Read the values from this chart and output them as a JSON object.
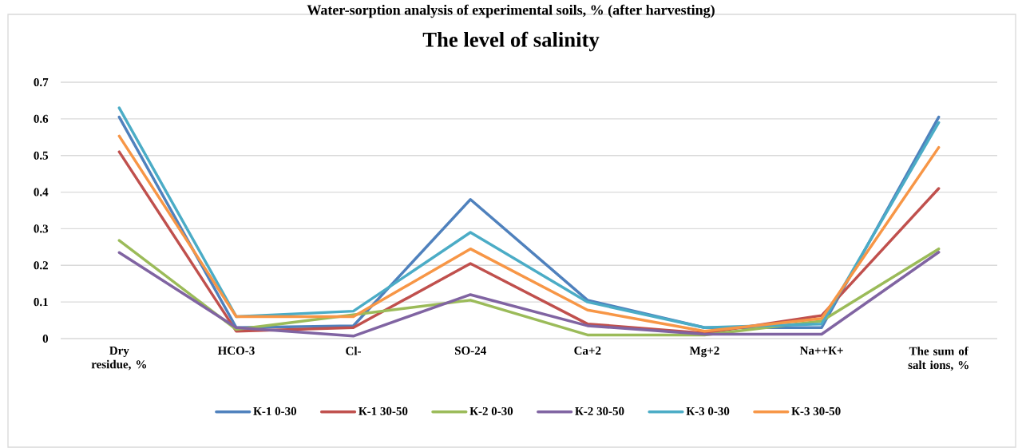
{
  "chart_data": {
    "type": "line",
    "title": "The level of salinity",
    "annotations": [
      "Water-sorption analysis of experimental soils, % (after harvesting)"
    ],
    "categories": [
      "Dry residue, %",
      "HCO-3",
      "Cl-",
      "SO-24",
      "Ca+2",
      "Mg+2",
      "Na++К+",
      "The sum of salt ions, %"
    ],
    "series": [
      {
        "name": "К-1 0-30",
        "color": "#4f81bd",
        "values": [
          0.605,
          0.03,
          0.035,
          0.38,
          0.105,
          0.03,
          0.03,
          0.605
        ]
      },
      {
        "name": "К-1 30-50",
        "color": "#c0504d",
        "values": [
          0.51,
          0.02,
          0.03,
          0.205,
          0.04,
          0.015,
          0.063,
          0.41
        ]
      },
      {
        "name": "К-2 0-30",
        "color": "#9bbb59",
        "values": [
          0.268,
          0.025,
          0.065,
          0.105,
          0.01,
          0.01,
          0.048,
          0.245
        ]
      },
      {
        "name": "К-2 30-50",
        "color": "#8064a2",
        "values": [
          0.235,
          0.03,
          0.007,
          0.12,
          0.035,
          0.012,
          0.012,
          0.236
        ]
      },
      {
        "name": "К-3 0-30",
        "color": "#4bacc6",
        "values": [
          0.63,
          0.06,
          0.075,
          0.29,
          0.1,
          0.03,
          0.04,
          0.59
        ]
      },
      {
        "name": "К-3 30-50",
        "color": "#f79646",
        "values": [
          0.553,
          0.06,
          0.06,
          0.245,
          0.078,
          0.02,
          0.055,
          0.522
        ]
      }
    ],
    "ylim": [
      0,
      0.7
    ],
    "yticks": [
      0,
      0.1,
      0.2,
      0.3,
      0.4,
      0.5,
      0.6,
      0.7
    ],
    "grid": "y",
    "legend": "bottom"
  }
}
